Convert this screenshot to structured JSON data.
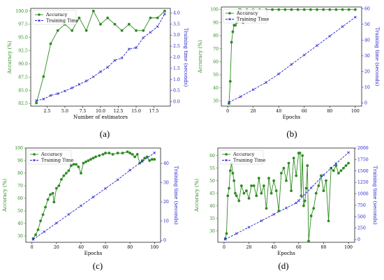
{
  "colors": {
    "accuracy": "#2e8b22",
    "time": "#2222cc"
  },
  "chart_data": [
    {
      "type": "line",
      "caption": "(a)",
      "xlabel": "Number of estimators",
      "ylabel_left": "Accuracy (%)",
      "ylabel_right": "Training time (seconds)",
      "xlim": [
        0.2,
        19.8
      ],
      "ylim_left": [
        82.0,
        100.5
      ],
      "ylim_right": [
        -0.2,
        4.2
      ],
      "xticks": [
        2.5,
        5.0,
        7.5,
        10.0,
        12.5,
        15.0,
        17.5
      ],
      "xtick_labels": [
        "2.5",
        "5.0",
        "7.5",
        "10.0",
        "12.5",
        "15.0",
        "17.5"
      ],
      "yticks_left": [
        82.5,
        85.0,
        87.5,
        90.0,
        92.5,
        95.0,
        97.5,
        100.0
      ],
      "ytick_labels_left": [
        "82.5",
        "85.0",
        "87.5",
        "90.0",
        "92.5",
        "95.0",
        "97.5",
        "100.0"
      ],
      "yticks_right": [
        0.0,
        0.5,
        1.0,
        1.5,
        2.0,
        2.5,
        3.0,
        3.5,
        4.0
      ],
      "ytick_labels_right": [
        "0.0",
        "0.5",
        "1.0",
        "1.5",
        "2.0",
        "2.5",
        "3.0",
        "3.5",
        "4.0"
      ],
      "legend_loc": "top-left",
      "series": [
        {
          "name": "Accuracy",
          "axis": "left",
          "marker": "circle",
          "x": [
            1,
            2,
            3,
            4,
            5,
            6,
            7,
            8,
            9,
            10,
            11,
            12,
            13,
            14,
            15,
            16,
            17,
            18,
            19
          ],
          "values": [
            82.6,
            87.6,
            93.8,
            96.3,
            97.5,
            96.3,
            98.7,
            96.3,
            100.0,
            97.5,
            98.7,
            97.5,
            96.3,
            97.5,
            96.3,
            96.3,
            98.7,
            98.7,
            100.0
          ]
        },
        {
          "name": "Training Time",
          "axis": "right",
          "marker": "x",
          "x": [
            1,
            2,
            3,
            4,
            5,
            6,
            7,
            8,
            9,
            10,
            11,
            12,
            13,
            14,
            15,
            16,
            17,
            18,
            19
          ],
          "values": [
            0.05,
            0.12,
            0.28,
            0.36,
            0.48,
            0.62,
            0.78,
            0.93,
            1.12,
            1.35,
            1.55,
            1.86,
            1.97,
            2.37,
            2.43,
            2.88,
            3.12,
            3.38,
            3.95
          ]
        }
      ]
    },
    {
      "type": "line",
      "caption": "(b)",
      "xlabel": "Epochs",
      "ylabel_left": "Accuracy (%)",
      "ylabel_right": "Training time (seconds)",
      "xlim": [
        -5,
        105
      ],
      "ylim_left": [
        26,
        102
      ],
      "ylim_right": [
        -2,
        61
      ],
      "xticks": [
        0,
        20,
        40,
        60,
        80,
        100
      ],
      "xtick_labels": [
        "0",
        "20",
        "40",
        "60",
        "80",
        "100"
      ],
      "yticks_left": [
        30,
        40,
        50,
        60,
        70,
        80,
        90,
        100
      ],
      "ytick_labels_left": [
        "30",
        "40",
        "50",
        "60",
        "70",
        "80",
        "90",
        "100"
      ],
      "yticks_right": [
        0,
        10,
        20,
        30,
        40,
        50,
        60
      ],
      "ytick_labels_right": [
        "0",
        "10",
        "20",
        "30",
        "40",
        "50",
        "60"
      ],
      "legend_loc": "top-left",
      "series": [
        {
          "name": "Accuracy",
          "axis": "left",
          "marker": "circle",
          "x": [
            1,
            2,
            3,
            4,
            5,
            6,
            7,
            8,
            9,
            10,
            12,
            15,
            20,
            25,
            30,
            35,
            40,
            45,
            50,
            55,
            60,
            65,
            70,
            75,
            80,
            85,
            90,
            95,
            100
          ],
          "values": [
            28,
            45,
            75,
            83,
            88,
            88,
            90,
            98,
            100,
            100,
            90,
            100,
            100,
            100,
            100,
            100,
            100,
            100,
            100,
            100,
            100,
            100,
            100,
            100,
            100,
            100,
            100,
            100,
            100
          ]
        },
        {
          "name": "Training Time",
          "axis": "right",
          "marker": "x",
          "x": [
            1,
            10,
            20,
            30,
            40,
            50,
            60,
            70,
            80,
            90,
            100
          ],
          "values": [
            0.5,
            4,
            8.5,
            13,
            18.5,
            24.5,
            30.5,
            36.5,
            42.5,
            48.5,
            54.5
          ]
        }
      ]
    },
    {
      "type": "line",
      "caption": "(c)",
      "xlabel": "Epochs",
      "ylabel_left": "Accuracy (%)",
      "ylabel_right": "Training time (seconds)",
      "xlim": [
        -5,
        105
      ],
      "ylim_left": [
        25,
        100
      ],
      "ylim_right": [
        -1,
        48
      ],
      "xticks": [
        0,
        20,
        40,
        60,
        80,
        100
      ],
      "xtick_labels": [
        "0",
        "20",
        "40",
        "60",
        "80",
        "100"
      ],
      "yticks_left": [
        30,
        40,
        50,
        60,
        70,
        80,
        90,
        100
      ],
      "ytick_labels_left": [
        "30",
        "40",
        "50",
        "60",
        "70",
        "80",
        "90",
        "100"
      ],
      "yticks_right": [
        0,
        10,
        20,
        30,
        40
      ],
      "ytick_labels_right": [
        "0",
        "10",
        "20",
        "30",
        "40"
      ],
      "legend_loc": "top-left",
      "series": [
        {
          "name": "Accuracy",
          "axis": "left",
          "marker": "circle",
          "x": [
            1,
            3,
            5,
            7,
            9,
            11,
            13,
            15,
            17,
            18,
            20,
            22,
            24,
            26,
            28,
            30,
            32,
            34,
            36,
            38,
            40,
            42,
            44,
            46,
            48,
            50,
            52,
            55,
            58,
            60,
            63,
            66,
            70,
            74,
            78,
            80,
            82,
            84,
            86,
            88,
            90,
            92,
            94,
            96,
            98,
            100
          ],
          "values": [
            28,
            31,
            35,
            42,
            47,
            53,
            59,
            63,
            64,
            57,
            68,
            70,
            75,
            78,
            80,
            82,
            86,
            87,
            87,
            85,
            80,
            88,
            89,
            90,
            91,
            92,
            93,
            94,
            95,
            96,
            96,
            95,
            96,
            96,
            97,
            96,
            95,
            93,
            95,
            88,
            90,
            92,
            93,
            90,
            91,
            91
          ]
        },
        {
          "name": "Training Time",
          "axis": "right",
          "marker": "x",
          "x": [
            1,
            10,
            20,
            30,
            40,
            50,
            60,
            70,
            80,
            90,
            100
          ],
          "values": [
            0.5,
            4.5,
            9,
            13.5,
            18,
            22.5,
            27,
            31.5,
            36.5,
            41,
            45.5
          ]
        }
      ]
    },
    {
      "type": "line",
      "caption": "(d)",
      "xlabel": "Epochs",
      "ylabel_left": "Accuracy (%)",
      "ylabel_right": "Training time (seconds)",
      "xlim": [
        -5,
        105
      ],
      "ylim_left": [
        25.5,
        63
      ],
      "ylim_right": [
        -60,
        2000
      ],
      "xticks": [
        0,
        20,
        40,
        60,
        80,
        100
      ],
      "xtick_labels": [
        "0",
        "20",
        "40",
        "60",
        "80",
        "100"
      ],
      "yticks_left": [
        30,
        35,
        40,
        45,
        50,
        55,
        60
      ],
      "ytick_labels_left": [
        "30",
        "35",
        "40",
        "45",
        "50",
        "55",
        "60"
      ],
      "yticks_right": [
        0,
        250,
        500,
        750,
        1000,
        1250,
        1500,
        1750,
        2000
      ],
      "ytick_labels_right": [
        "0",
        "250",
        "500",
        "750",
        "1000",
        "1250",
        "1500",
        "1750",
        "2000"
      ],
      "legend_loc": "top-left",
      "series": [
        {
          "name": "Accuracy",
          "axis": "left",
          "marker": "circle",
          "x": [
            1,
            2,
            3,
            4,
            5,
            6,
            7,
            8,
            9,
            10,
            12,
            14,
            16,
            18,
            20,
            22,
            24,
            26,
            28,
            30,
            32,
            34,
            36,
            38,
            40,
            42,
            44,
            46,
            48,
            50,
            52,
            54,
            56,
            58,
            60,
            61,
            62,
            63,
            64,
            65,
            66,
            67,
            68,
            70,
            72,
            74,
            76,
            78,
            80,
            82,
            84,
            86,
            88,
            90,
            92,
            94,
            96,
            98,
            100
          ],
          "values": [
            27,
            29,
            44,
            47,
            54,
            57,
            53,
            50,
            45,
            44,
            42,
            48,
            45,
            46,
            43,
            48,
            48,
            44,
            51,
            45,
            48,
            39,
            51,
            45,
            50,
            46,
            38,
            53,
            55,
            50,
            57,
            46,
            59,
            52,
            61,
            61,
            44,
            60,
            40,
            42,
            47,
            56,
            26,
            36,
            39,
            45,
            48,
            52,
            46,
            50,
            34,
            55,
            54,
            56,
            53,
            54,
            55,
            56,
            57
          ]
        },
        {
          "name": "Training Time",
          "axis": "right",
          "marker": "x",
          "x": [
            1,
            10,
            20,
            30,
            40,
            50,
            58,
            60,
            70,
            80,
            90,
            100
          ],
          "values": [
            5,
            130,
            270,
            410,
            550,
            690,
            800,
            850,
            1130,
            1410,
            1660,
            1900
          ]
        }
      ]
    }
  ]
}
